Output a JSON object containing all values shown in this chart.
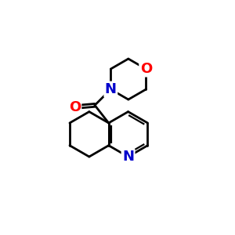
{
  "background": "#ffffff",
  "bond_color": "#000000",
  "N_color": "#0000cc",
  "O_color": "#ff0000",
  "lw": 2.0,
  "lw_inner": 1.6,
  "fs": 13,
  "figsize": [
    3.0,
    3.0
  ],
  "dpi": 100,
  "xlim": [
    1.0,
    9.5
  ],
  "ylim": [
    1.5,
    9.5
  ],
  "b": 1.05
}
